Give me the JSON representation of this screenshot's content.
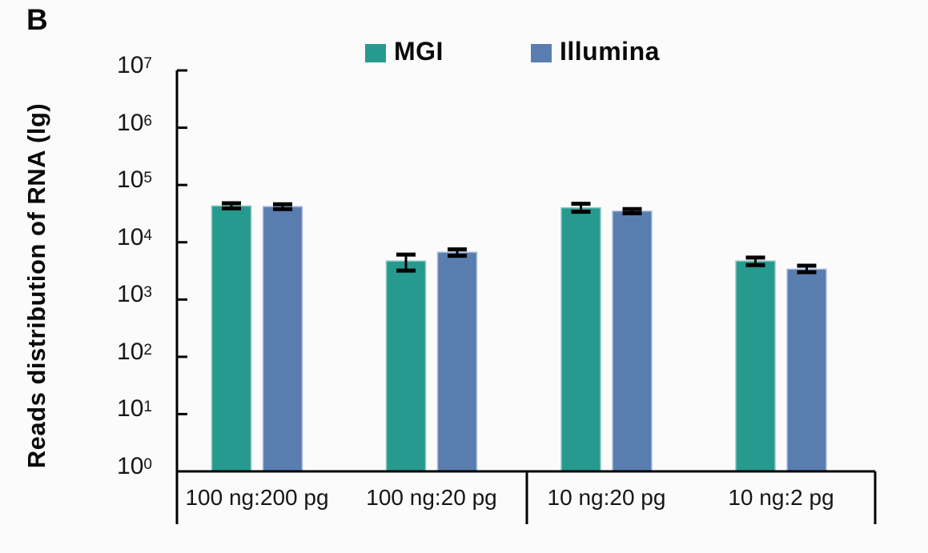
{
  "page": {
    "panel_label": "B",
    "background_color": "#fbfbfb"
  },
  "chart_data": {
    "type": "bar",
    "scale": "log10",
    "title": "",
    "xlabel": "",
    "ylabel": "Reads distribution of RNA (lg)",
    "ylim": [
      1,
      10000000
    ],
    "ytick_exponents": [
      0,
      1,
      2,
      3,
      4,
      5,
      6,
      7
    ],
    "ytick_base": "10",
    "grid": false,
    "legend_position": "top",
    "axis_color": "#000000",
    "error_bar_color": "#000000",
    "categories": [
      "100 ng:200 pg",
      "100 ng:20 pg",
      "10 ng:20 pg",
      "10 ng:2 pg"
    ],
    "category_group_dividers": "between index 1 and 2",
    "series": [
      {
        "name": "MGI",
        "color": "#279A8F",
        "border_color": "#8CC8C1",
        "values": [
          43000,
          4700,
          40000,
          4700
        ],
        "error_low": [
          39000,
          3200,
          34000,
          4000
        ],
        "error_high": [
          48000,
          6100,
          47000,
          5400
        ]
      },
      {
        "name": "Illumina",
        "color": "#5A7DB0",
        "border_color": "#B0C1DC",
        "values": [
          42000,
          6700,
          35000,
          3400
        ],
        "error_low": [
          38000,
          5800,
          32000,
          3000
        ],
        "error_high": [
          46000,
          7500,
          38000,
          3900
        ]
      }
    ]
  }
}
